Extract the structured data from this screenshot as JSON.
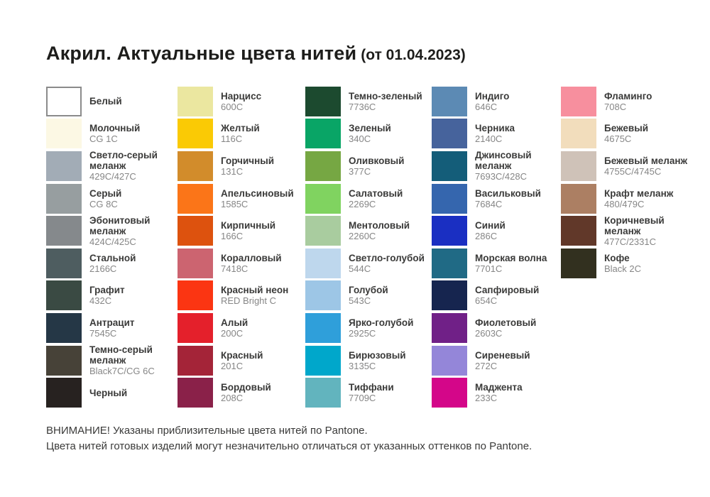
{
  "title": {
    "main": "Акрил. Актуальные цвета нитей",
    "suffix": "(от 01.04.2023)"
  },
  "columns": [
    {
      "items": [
        {
          "name": "Белый",
          "code": "",
          "color": "#FFFFFF",
          "border": true
        },
        {
          "name": "Молочный",
          "code": "CG 1C",
          "color": "#FCF8E4"
        },
        {
          "name": "Светло-серый меланж",
          "code": "429C/427C",
          "color": "#A2ACB6"
        },
        {
          "name": "Серый",
          "code": "CG 8C",
          "color": "#979EA0"
        },
        {
          "name": "Эбонитовый меланж",
          "code": "424C/425C",
          "color": "#85898C"
        },
        {
          "name": "Стальной",
          "code": "2166C",
          "color": "#4E5D60"
        },
        {
          "name": "Графит",
          "code": "432C",
          "color": "#3A4A43"
        },
        {
          "name": "Антрацит",
          "code": "7545C",
          "color": "#253746"
        },
        {
          "name": "Темно-серый меланж",
          "code": "Black7C/CG 6C",
          "color": "#474238"
        },
        {
          "name": "Черный",
          "code": "",
          "color": "#272220"
        }
      ]
    },
    {
      "items": [
        {
          "name": "Нарцисс",
          "code": "600C",
          "color": "#EBE7A0"
        },
        {
          "name": "Желтый",
          "code": "116C",
          "color": "#FACA05"
        },
        {
          "name": "Горчичный",
          "code": "131C",
          "color": "#D28C2B"
        },
        {
          "name": "Апельсиновый",
          "code": "1585C",
          "color": "#FB7518"
        },
        {
          "name": "Кирпичный",
          "code": "166C",
          "color": "#DD520E"
        },
        {
          "name": "Коралловый",
          "code": "7418C",
          "color": "#CC6470"
        },
        {
          "name": "Красный неон",
          "code": "RED Bright C",
          "color": "#FB3512"
        },
        {
          "name": "Алый",
          "code": "200C",
          "color": "#E4202B"
        },
        {
          "name": "Красный",
          "code": "201C",
          "color": "#A42438"
        },
        {
          "name": "Бордовый",
          "code": "208C",
          "color": "#8A2149"
        }
      ]
    },
    {
      "items": [
        {
          "name": "Темно-зеленый",
          "code": "7736C",
          "color": "#1C4A2F"
        },
        {
          "name": "Зеленый",
          "code": "340C",
          "color": "#09A566"
        },
        {
          "name": "Оливковый",
          "code": "377C",
          "color": "#76A743"
        },
        {
          "name": "Салатовый",
          "code": "2269C",
          "color": "#80D360"
        },
        {
          "name": "Ментоловый",
          "code": "2260C",
          "color": "#A9CC9F"
        },
        {
          "name": "Светло-голубой",
          "code": "544C",
          "color": "#BED7ED"
        },
        {
          "name": "Голубой",
          "code": "543C",
          "color": "#9DC6E6"
        },
        {
          "name": "Ярко-голубой",
          "code": "2925C",
          "color": "#2F9FDA"
        },
        {
          "name": "Бирюзовый",
          "code": "3135C",
          "color": "#00A7CB"
        },
        {
          "name": "Тиффани",
          "code": "7709C",
          "color": "#62B4BE"
        }
      ]
    },
    {
      "items": [
        {
          "name": "Индиго",
          "code": "646C",
          "color": "#5C8AB4"
        },
        {
          "name": "Черника",
          "code": "2140C",
          "color": "#46639C"
        },
        {
          "name": "Джинсовый меланж",
          "code": "7693C/428C",
          "color": "#145D79"
        },
        {
          "name": "Васильковый",
          "code": "7684C",
          "color": "#3566AE"
        },
        {
          "name": "Синий",
          "code": "286C",
          "color": "#1A2FC2"
        },
        {
          "name": "Морская волна",
          "code": "7701C",
          "color": "#206A85"
        },
        {
          "name": "Сапфировый",
          "code": "654C",
          "color": "#16254F"
        },
        {
          "name": "Фиолетовый",
          "code": "2603C",
          "color": "#702087"
        },
        {
          "name": "Сиреневый",
          "code": "272C",
          "color": "#9486D9"
        },
        {
          "name": "Маджента",
          "code": "233C",
          "color": "#D40689"
        }
      ]
    },
    {
      "items": [
        {
          "name": "Фламинго",
          "code": "708C",
          "color": "#F78F9E"
        },
        {
          "name": "Бежевый",
          "code": "4675C",
          "color": "#F2DDBC"
        },
        {
          "name": "Бежевый меланж",
          "code": "4755C/4745C",
          "color": "#CFC2B8"
        },
        {
          "name": "Крафт меланж",
          "code": "480/479C",
          "color": "#AC7F63"
        },
        {
          "name": "Коричневый меланж",
          "code": "477C/2331C",
          "color": "#613829"
        },
        {
          "name": "Кофе",
          "code": "Black 2C",
          "color": "#32301F"
        }
      ]
    }
  ],
  "footer": {
    "line1": "ВНИМАНИЕ! Указаны приблизительные цвета нитей по Pantone.",
    "line2": "Цвета нитей готовых изделий могут незначительно отличаться от указанных оттенков по Pantone."
  }
}
